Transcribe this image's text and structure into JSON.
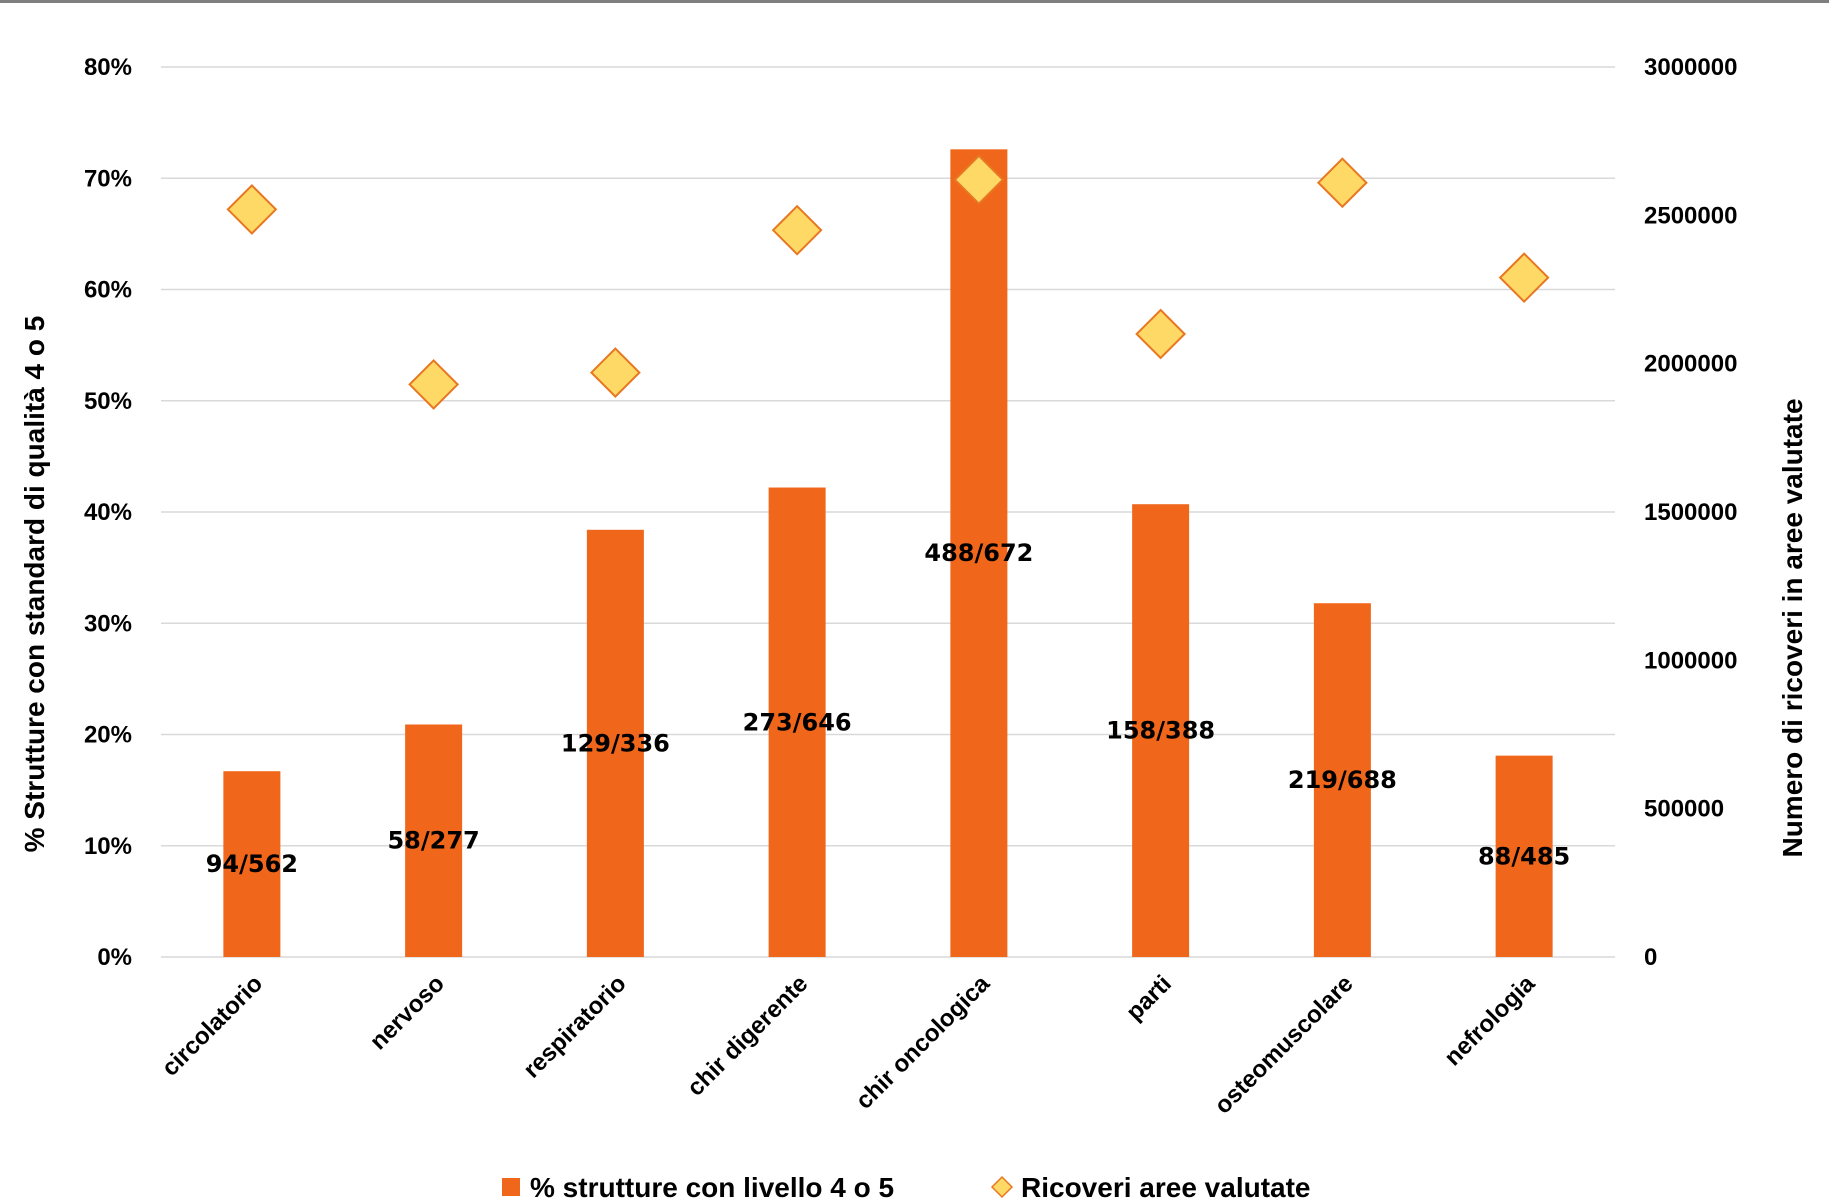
{
  "chart_data": {
    "type": "bar",
    "categories": [
      "circolatorio",
      "nervoso",
      "respiratorio",
      "chir digerente",
      "chir oncologica",
      "parti",
      "osteomuscolare",
      "nefrologia"
    ],
    "series": [
      {
        "name": "% strutture con livello 4 o 5",
        "type": "bar",
        "axis": "left",
        "values": [
          16.7,
          20.9,
          38.4,
          42.2,
          72.6,
          40.7,
          31.8,
          18.1
        ],
        "labels": [
          "94/562",
          "58/277",
          "129/336",
          "273/646",
          "488/672",
          "158/388",
          "219/688",
          "88/485"
        ],
        "color": "#f0661a"
      },
      {
        "name": "Ricoveri aree valutate",
        "type": "scatter",
        "marker": "diamond",
        "axis": "right",
        "values": [
          2520000,
          1930000,
          1970000,
          2450000,
          2620000,
          2100000,
          2610000,
          2290000
        ],
        "color": "#ffd966",
        "edge_color": "#e87722"
      }
    ],
    "y_left": {
      "label": "%  Strutture con standard di qualità 4 o 5",
      "range": [
        0,
        80
      ],
      "ticks": [
        "0%",
        "10%",
        "20%",
        "30%",
        "40%",
        "50%",
        "60%",
        "70%",
        "80%"
      ]
    },
    "y_right": {
      "label": "Numero di ricoveri in aree valutate",
      "range": [
        0,
        3000000
      ],
      "ticks": [
        "0",
        "500000",
        "1000000",
        "1500000",
        "2000000",
        "2500000",
        "3000000"
      ]
    },
    "grid": true,
    "legend_position": "bottom",
    "gridline_color": "#d9d9d9"
  }
}
